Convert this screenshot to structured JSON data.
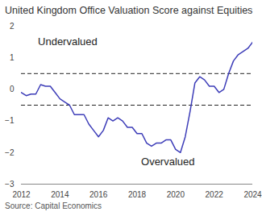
{
  "chart_data": {
    "type": "line",
    "title": "United Kingdom Office Valuation Score against Equities",
    "caption": "Source: Capital Economics",
    "x": [
      2012,
      2012.25,
      2012.5,
      2012.75,
      2013,
      2013.25,
      2013.5,
      2013.75,
      2014,
      2014.25,
      2014.5,
      2014.75,
      2015,
      2015.25,
      2015.5,
      2015.75,
      2016,
      2016.25,
      2016.5,
      2016.75,
      2017,
      2017.25,
      2017.5,
      2017.75,
      2018,
      2018.25,
      2018.5,
      2018.75,
      2019,
      2019.25,
      2019.5,
      2019.75,
      2020,
      2020.25,
      2020.5,
      2020.75,
      2021,
      2021.25,
      2021.5,
      2021.75,
      2022,
      2022.25,
      2022.5,
      2022.75,
      2023,
      2023.25,
      2023.5,
      2023.75,
      2024
    ],
    "series": [
      {
        "name": "Office Valuation Score",
        "color": "#3d3db8",
        "values": [
          -0.1,
          -0.2,
          -0.15,
          -0.15,
          0.15,
          0.1,
          0.1,
          -0.1,
          -0.3,
          -0.4,
          -0.5,
          -0.8,
          -0.8,
          -0.8,
          -1.1,
          -1.3,
          -1.5,
          -1.3,
          -0.9,
          -1.0,
          -0.9,
          -1.0,
          -1.2,
          -1.2,
          -1.4,
          -1.4,
          -1.7,
          -1.8,
          -1.7,
          -1.7,
          -1.6,
          -1.6,
          -1.9,
          -2.0,
          -1.5,
          -0.7,
          0.2,
          0.4,
          0.3,
          0.1,
          0.1,
          -0.1,
          0.0,
          0.5,
          0.9,
          1.1,
          1.2,
          1.3,
          1.5
        ]
      }
    ],
    "reference_lines": [
      0.5,
      -0.5
    ],
    "reference_line_style": "dashed",
    "annotations": [
      {
        "text": "Undervalued",
        "x": 2014.4,
        "y": 1.5
      },
      {
        "text": "Overvalued",
        "x": 2019.6,
        "y": -2.3
      }
    ],
    "xlim": [
      2012,
      2024
    ],
    "xticks": [
      2012,
      2014,
      2016,
      2018,
      2020,
      2022,
      2024
    ],
    "ylim": [
      -3,
      2
    ],
    "yticks": [
      -3,
      -2,
      -1,
      0,
      1,
      2
    ],
    "grid": false
  }
}
